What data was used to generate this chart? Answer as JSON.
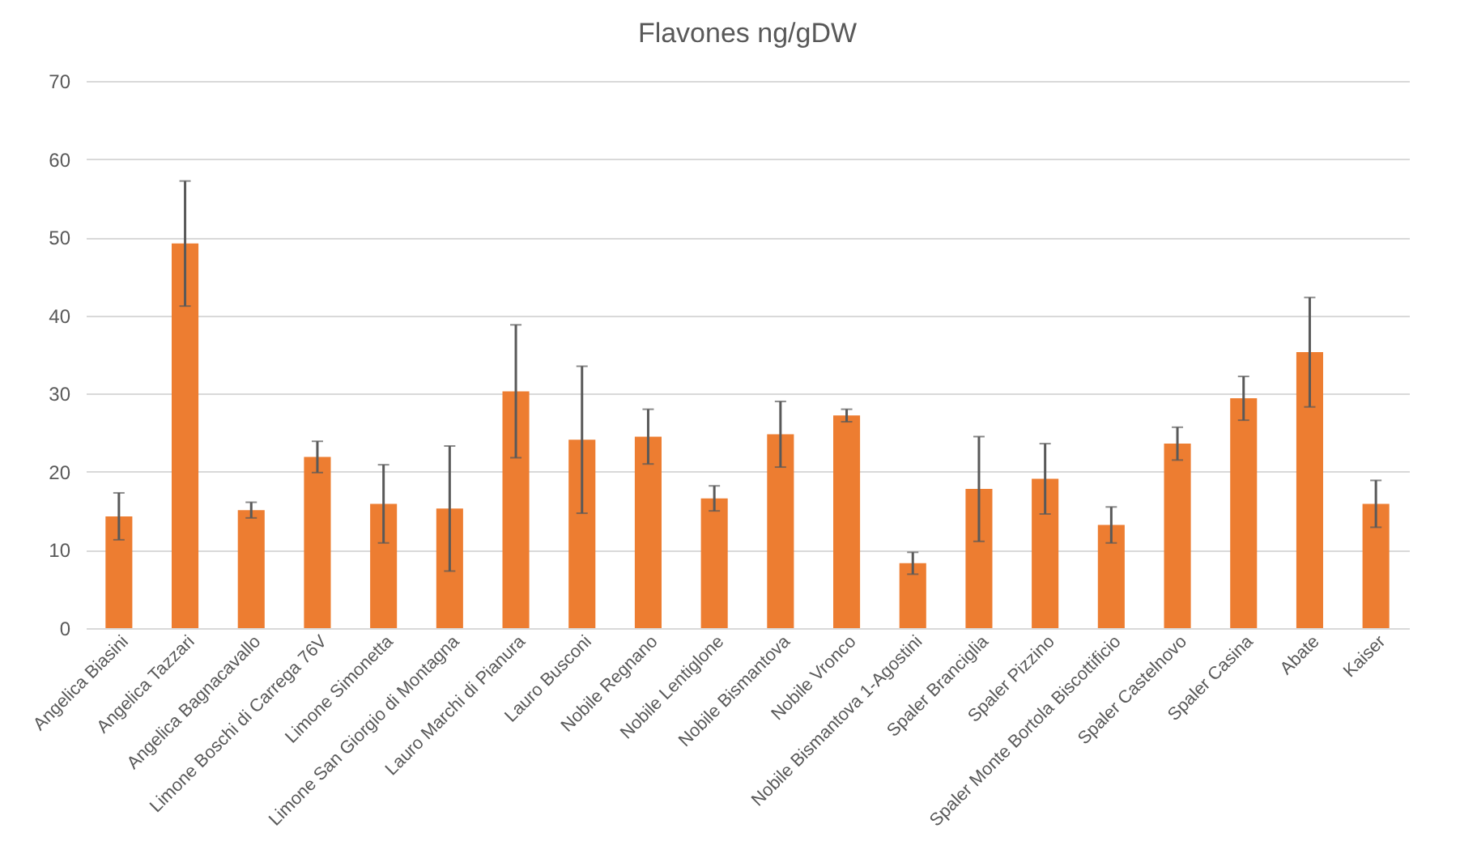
{
  "chart_data": {
    "type": "bar",
    "title": "Flavones ng/gDW",
    "categories": [
      "Angelica Biasini",
      "Angelica Tazzari",
      "Angelica Bagnacavallo",
      "Limone Boschi di Carrega 76V",
      "Limone Simonetta",
      "Limone San Giorgio di Montagna",
      "Lauro Marchi di Pianura",
      "Lauro Busconi",
      "Nobile Regnano",
      "Nobile Lentiglone",
      "Nobile Bismantova",
      "Nobile Vronco",
      "Nobile Bismantova 1-Agostini",
      "Spaler Branciglia",
      "Spaler Pizzino",
      "Spaler Monte Bortola Biscottificio",
      "Spaler Castelnovo",
      "Spaler Casina",
      "Abate",
      "Kaiser"
    ],
    "values": [
      14.3,
      49.2,
      15.1,
      21.9,
      15.9,
      15.3,
      30.3,
      24.1,
      24.5,
      16.6,
      24.8,
      27.2,
      8.3,
      17.8,
      19.1,
      13.2,
      23.6,
      29.4,
      35.3,
      15.9
    ],
    "errors": [
      3,
      8,
      1,
      2,
      5,
      8,
      8.5,
      9.4,
      3.5,
      1.6,
      4.2,
      0.8,
      1.4,
      6.7,
      4.5,
      2.3,
      2.1,
      2.8,
      7,
      3
    ],
    "color": "#ed7d31",
    "ylim": [
      0,
      70
    ],
    "yticks": [
      0,
      10,
      20,
      30,
      40,
      50,
      60,
      70
    ],
    "grid": "y"
  }
}
